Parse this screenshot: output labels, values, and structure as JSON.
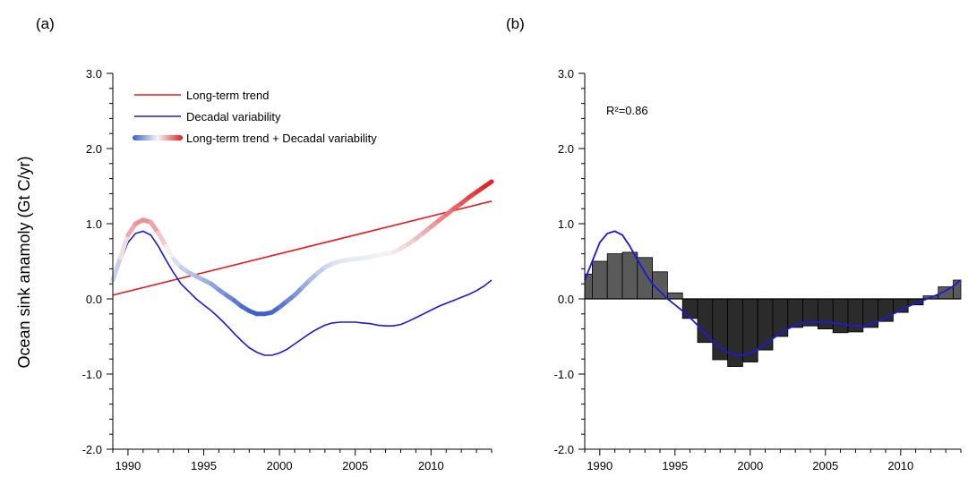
{
  "chart_data": [
    {
      "panel_label": "(a)",
      "type": "line",
      "ylabel": "Ocean sink anamoly (Gt C/yr)",
      "xlim": [
        1989,
        2014
      ],
      "ylim": [
        -2.0,
        3.0
      ],
      "x_ticks": [
        1990,
        1995,
        2000,
        2005,
        2010
      ],
      "y_ticks": [
        -2.0,
        -1.0,
        0.0,
        1.0,
        2.0,
        3.0
      ],
      "x_tick_labels": [
        "1990",
        "1995",
        "2000",
        "2005",
        "2010"
      ],
      "y_tick_labels": [
        "-2.0",
        "-1.0",
        "0.0",
        "1.0",
        "2.0",
        "3.0"
      ],
      "legend_position": "top-left",
      "series": [
        {
          "name": "Long-term trend",
          "color": "#e41a1c",
          "x": [
            1989,
            2014
          ],
          "y": [
            0.05,
            1.3
          ]
        },
        {
          "name": "Decadal variability",
          "color": "#1a1adc",
          "x": [
            1989,
            1989.5,
            1990,
            1990.5,
            1991,
            1991.5,
            1992,
            1992.5,
            1993,
            1993.5,
            1994,
            1994.5,
            1995,
            1995.5,
            1996,
            1996.5,
            1997,
            1997.5,
            1998,
            1998.5,
            1999,
            1999.5,
            2000,
            2000.5,
            2001,
            2001.5,
            2002,
            2002.5,
            2003,
            2003.5,
            2004,
            2004.5,
            2005,
            2005.5,
            2006,
            2006.5,
            2007,
            2007.5,
            2008,
            2008.5,
            2009,
            2009.5,
            2010,
            2010.5,
            2011,
            2011.5,
            2012,
            2012.5,
            2013,
            2013.5,
            2014
          ],
          "y": [
            0.25,
            0.5,
            0.75,
            0.87,
            0.9,
            0.85,
            0.7,
            0.52,
            0.35,
            0.2,
            0.1,
            0.0,
            -0.08,
            -0.16,
            -0.25,
            -0.35,
            -0.46,
            -0.56,
            -0.65,
            -0.71,
            -0.75,
            -0.75,
            -0.72,
            -0.67,
            -0.6,
            -0.53,
            -0.46,
            -0.4,
            -0.35,
            -0.32,
            -0.31,
            -0.31,
            -0.31,
            -0.32,
            -0.33,
            -0.35,
            -0.36,
            -0.36,
            -0.34,
            -0.3,
            -0.25,
            -0.2,
            -0.15,
            -0.1,
            -0.06,
            -0.02,
            0.02,
            0.06,
            0.11,
            0.17,
            0.25
          ]
        },
        {
          "name": "Long-term trend + Decadal variability",
          "color_low": "#3a5fcd",
          "color_high": "#e41a1c",
          "x": [
            1989,
            1989.5,
            1990,
            1990.5,
            1991,
            1991.5,
            1992,
            1992.5,
            1993,
            1993.5,
            1994,
            1994.5,
            1995,
            1995.5,
            1996,
            1996.5,
            1997,
            1997.5,
            1998,
            1998.5,
            1999,
            1999.5,
            2000,
            2000.5,
            2001,
            2001.5,
            2002,
            2002.5,
            2003,
            2003.5,
            2004,
            2004.5,
            2005,
            2005.5,
            2006,
            2006.5,
            2007,
            2007.5,
            2008,
            2008.5,
            2009,
            2009.5,
            2010,
            2010.5,
            2011,
            2011.5,
            2012,
            2012.5,
            2013,
            2013.5,
            2014
          ],
          "y": [
            0.25,
            0.55,
            0.85,
            1.0,
            1.05,
            1.02,
            0.88,
            0.7,
            0.53,
            0.42,
            0.35,
            0.3,
            0.25,
            0.2,
            0.12,
            0.05,
            -0.02,
            -0.1,
            -0.16,
            -0.2,
            -0.2,
            -0.18,
            -0.11,
            -0.03,
            0.05,
            0.15,
            0.25,
            0.34,
            0.42,
            0.47,
            0.5,
            0.52,
            0.53,
            0.54,
            0.56,
            0.58,
            0.6,
            0.62,
            0.67,
            0.73,
            0.8,
            0.88,
            0.96,
            1.04,
            1.12,
            1.2,
            1.27,
            1.35,
            1.42,
            1.49,
            1.56
          ]
        }
      ]
    },
    {
      "panel_label": "(b)",
      "type": "bar",
      "xlim": [
        1989,
        2014
      ],
      "ylim": [
        -2.0,
        3.0
      ],
      "x_ticks": [
        1990,
        1995,
        2000,
        2005,
        2010
      ],
      "y_ticks": [
        -2.0,
        -1.0,
        0.0,
        1.0,
        2.0,
        3.0
      ],
      "x_tick_labels": [
        "1990",
        "1995",
        "2000",
        "2005",
        "2010"
      ],
      "y_tick_labels": [
        "-2.0",
        "-1.0",
        "0.0",
        "1.0",
        "2.0",
        "3.0"
      ],
      "annotation": "R²=0.86",
      "bar_color_positive": "#5a5a5a",
      "bar_color_negative": "#2b2b2b",
      "bars": {
        "x": [
          1989,
          1990,
          1991,
          1992,
          1993,
          1994,
          1995,
          1996,
          1997,
          1998,
          1999,
          2000,
          2001,
          2002,
          2003,
          2004,
          2005,
          2006,
          2007,
          2008,
          2009,
          2010,
          2011,
          2012,
          2013,
          2014
        ],
        "values": [
          0.33,
          0.5,
          0.6,
          0.62,
          0.55,
          0.36,
          0.08,
          -0.26,
          -0.58,
          -0.81,
          -0.9,
          -0.84,
          -0.68,
          -0.5,
          -0.38,
          -0.36,
          -0.4,
          -0.45,
          -0.44,
          -0.38,
          -0.3,
          -0.18,
          -0.08,
          0.04,
          0.16,
          0.25
        ]
      },
      "series": [
        {
          "color": "#1a1adc",
          "x": [
            1989,
            1989.5,
            1990,
            1990.5,
            1991,
            1991.5,
            1992,
            1992.5,
            1993,
            1993.5,
            1994,
            1994.5,
            1995,
            1995.5,
            1996,
            1996.5,
            1997,
            1997.5,
            1998,
            1998.5,
            1999,
            1999.5,
            2000,
            2000.5,
            2001,
            2001.5,
            2002,
            2002.5,
            2003,
            2003.5,
            2004,
            2004.5,
            2005,
            2005.5,
            2006,
            2006.5,
            2007,
            2007.5,
            2008,
            2008.5,
            2009,
            2009.5,
            2010,
            2010.5,
            2011,
            2011.5,
            2012,
            2012.5,
            2013,
            2013.5,
            2014
          ],
          "y": [
            0.25,
            0.5,
            0.75,
            0.87,
            0.9,
            0.85,
            0.7,
            0.52,
            0.35,
            0.2,
            0.1,
            0.0,
            -0.08,
            -0.16,
            -0.25,
            -0.35,
            -0.46,
            -0.56,
            -0.65,
            -0.71,
            -0.75,
            -0.75,
            -0.72,
            -0.67,
            -0.6,
            -0.53,
            -0.46,
            -0.4,
            -0.35,
            -0.32,
            -0.31,
            -0.31,
            -0.31,
            -0.32,
            -0.33,
            -0.35,
            -0.36,
            -0.36,
            -0.34,
            -0.3,
            -0.25,
            -0.2,
            -0.15,
            -0.1,
            -0.06,
            -0.02,
            0.02,
            0.06,
            0.11,
            0.17,
            0.25
          ]
        }
      ]
    }
  ]
}
